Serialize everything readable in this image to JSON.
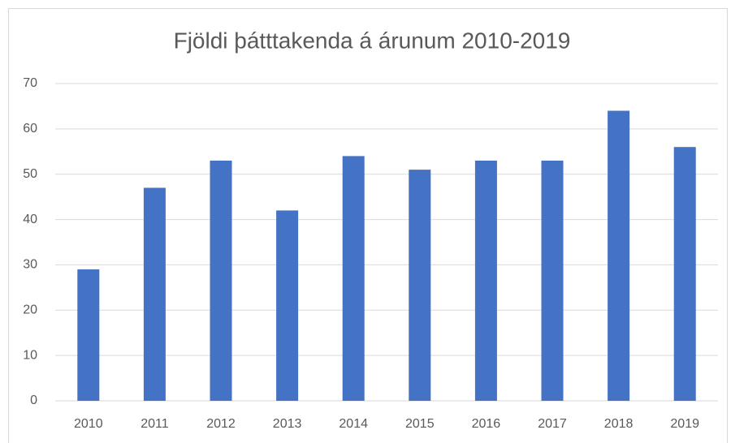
{
  "chart_data": {
    "type": "bar",
    "title": "Fjöldi þátttakenda á árunum 2010-2019",
    "categories": [
      "2010",
      "2011",
      "2012",
      "2013",
      "2014",
      "2015",
      "2016",
      "2017",
      "2018",
      "2019"
    ],
    "values": [
      29,
      47,
      53,
      42,
      54,
      51,
      53,
      53,
      64,
      56
    ],
    "color": "#4472c4",
    "ylim": [
      0,
      70
    ],
    "yticks": [
      0,
      10,
      20,
      30,
      40,
      50,
      60,
      70
    ],
    "grid": true
  }
}
